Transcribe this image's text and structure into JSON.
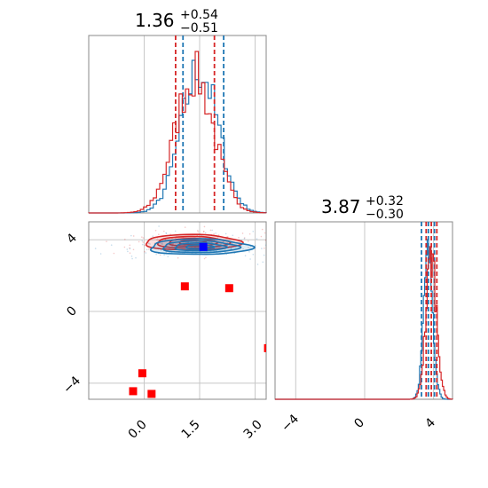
{
  "colors": {
    "red": "#d62728",
    "blue": "#1f77b4",
    "marker_red": "#ff0000",
    "marker_blue": "#0000ff",
    "grid": "#c8c8c8"
  },
  "titles": {
    "param1": {
      "base": "1.36",
      "sup": "+0.54",
      "sub": "−0.51"
    },
    "param2": {
      "base": "3.87",
      "sup": "+0.32",
      "sub": "−0.30"
    }
  },
  "ticks": {
    "x1": [
      "0.0",
      "1.5",
      "3.0"
    ],
    "y2": [
      "4",
      "0",
      "−4"
    ],
    "x2": [
      "−4",
      "0",
      "4"
    ]
  },
  "chart_data": [
    {
      "type": "histogram",
      "panel": "top-left marginal (param 1)",
      "xlim": [
        -1.5,
        3.3
      ],
      "grid": true,
      "series": [
        {
          "color": "red",
          "style": "step",
          "center": 1.36,
          "spread": 0.52,
          "quantiles": [
            0.85,
            1.9
          ]
        },
        {
          "color": "blue",
          "style": "step",
          "center": 1.5,
          "spread": 0.5,
          "quantiles": [
            1.05,
            2.15
          ]
        }
      ]
    },
    {
      "type": "scatter",
      "panel": "bottom-left joint (param 1 vs param 2)",
      "xlim": [
        -1.5,
        3.3
      ],
      "ylim": [
        -4.9,
        5.0
      ],
      "grid": true,
      "contours": [
        {
          "color": "red",
          "center": [
            1.3,
            3.85
          ],
          "sx": 0.9,
          "sy": 0.3
        },
        {
          "color": "blue",
          "center": [
            1.5,
            3.6
          ],
          "sx": 0.95,
          "sy": 0.3
        }
      ],
      "markers": [
        {
          "x": 1.6,
          "y": 3.6,
          "color": "blue"
        },
        {
          "x": 1.1,
          "y": 1.4,
          "color": "red"
        },
        {
          "x": 2.3,
          "y": 1.3,
          "color": "red"
        },
        {
          "x": -0.05,
          "y": -3.45,
          "color": "red"
        },
        {
          "x": -0.3,
          "y": -4.45,
          "color": "red"
        },
        {
          "x": 0.2,
          "y": -4.6,
          "color": "red"
        },
        {
          "x": 3.35,
          "y": -2.05,
          "color": "red"
        }
      ]
    },
    {
      "type": "histogram",
      "panel": "bottom-right marginal (param 2)",
      "xlim": [
        -5.2,
        5.1
      ],
      "grid": true,
      "series": [
        {
          "color": "red",
          "style": "step",
          "center": 3.87,
          "spread": 0.31,
          "quantiles": [
            3.57,
            4.19
          ]
        },
        {
          "color": "blue",
          "style": "step",
          "center": 3.7,
          "spread": 0.27,
          "quantiles": [
            3.3,
            4.05
          ]
        }
      ]
    }
  ]
}
